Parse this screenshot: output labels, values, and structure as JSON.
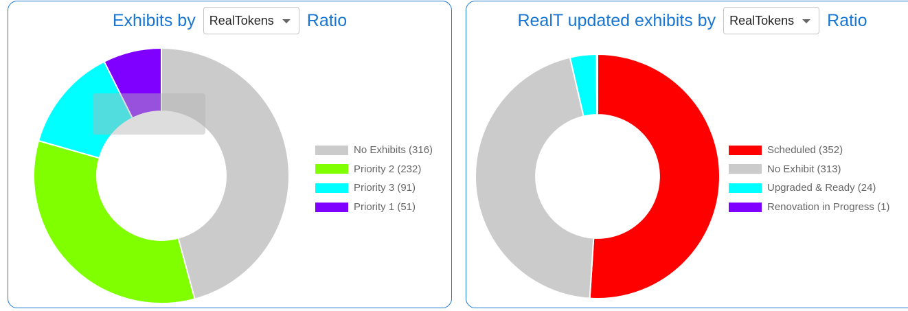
{
  "left_panel": {
    "title_prefix": "Exhibits by",
    "select_value": "RealTokens",
    "title_suffix": "Ratio"
  },
  "right_panel": {
    "title_prefix": "RealT updated exhibits by",
    "select_value": "RealTokens",
    "title_suffix": "Ratio"
  },
  "chart_data": [
    {
      "type": "pie",
      "donut": true,
      "legend_position": "right",
      "series": [
        {
          "label": "No Exhibits",
          "value": 316,
          "color": "#cbcbcb",
          "legend_text": "No Exhibits (316)"
        },
        {
          "label": "Priority 2",
          "value": 232,
          "color": "#80ff00",
          "legend_text": "Priority 2 (232)"
        },
        {
          "label": "Priority 3",
          "value": 91,
          "color": "#00ffff",
          "legend_text": "Priority 3 (91)"
        },
        {
          "label": "Priority 1",
          "value": 51,
          "color": "#8000ff",
          "legend_text": "Priority 1 (51)"
        }
      ]
    },
    {
      "type": "pie",
      "donut": true,
      "legend_position": "right",
      "series": [
        {
          "label": "Scheduled",
          "value": 352,
          "color": "#ff0000",
          "legend_text": "Scheduled (352)"
        },
        {
          "label": "No Exhibit",
          "value": 313,
          "color": "#cbcbcb",
          "legend_text": "No Exhibit (313)"
        },
        {
          "label": "Upgraded & Ready",
          "value": 24,
          "color": "#00ffff",
          "legend_text": "Upgraded & Ready (24)"
        },
        {
          "label": "Renovation in Progress",
          "value": 1,
          "color": "#8000ff",
          "legend_text": "Renovation in Progress (1)"
        }
      ]
    }
  ]
}
